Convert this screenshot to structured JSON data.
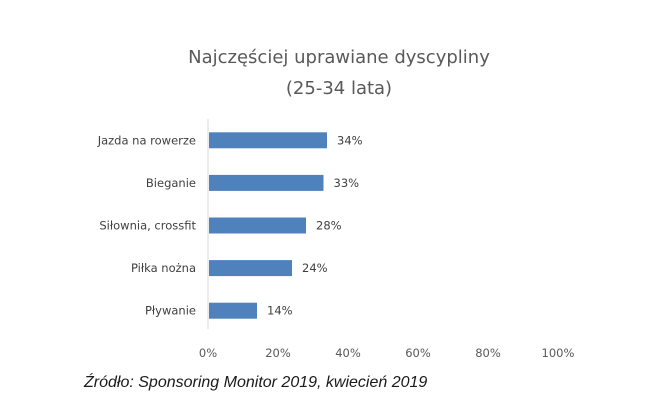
{
  "chart_data": {
    "type": "bar",
    "orientation": "horizontal",
    "title_line1": "Najczęściej uprawiane dyscypliny",
    "title_line2": "(25-34 lata)",
    "categories": [
      "Jazda na rowerze",
      "Bieganie",
      "Siłownia, crossfit",
      "Piłka nożna",
      "Pływanie"
    ],
    "values": [
      34,
      33,
      28,
      24,
      14
    ],
    "value_labels": [
      "34%",
      "33%",
      "28%",
      "24%",
      "14%"
    ],
    "xlim": [
      0,
      100
    ],
    "xticks": [
      0,
      20,
      40,
      60,
      80,
      100
    ],
    "xtick_labels": [
      "0%",
      "20%",
      "40%",
      "60%",
      "80%",
      "100%"
    ],
    "bar_color": "#4f81bd",
    "grid": false,
    "legend": "none"
  },
  "source": "Źródło: Sponsoring Monitor 2019, kwiecień 2019"
}
